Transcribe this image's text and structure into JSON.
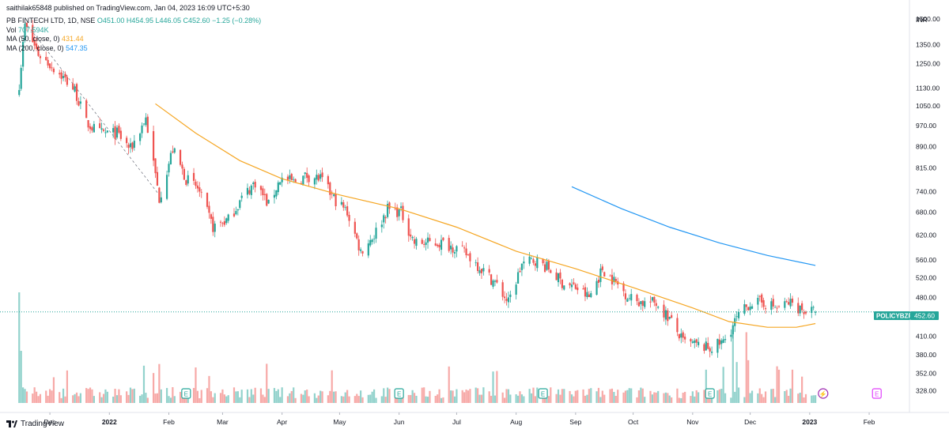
{
  "publisher": "saithilak65848 published on TradingView.com, Jan 04, 2023 16:09 UTC+5:30",
  "legend": {
    "symbol": "PB FINTECH LTD, 1D, NSE",
    "open": "O451.00",
    "high": "H454.95",
    "low": "L446.05",
    "close": "C452.60",
    "change": "−1.25 (−0.28%)",
    "vol_label": "Vol",
    "vol_value": "707.594K",
    "ma50_label": "MA (50, close, 0)",
    "ma50_value": "431.44",
    "ma200_label": "MA (200, close, 0)",
    "ma200_value": "547.35"
  },
  "currency": "INR",
  "price_tag": {
    "ticker": "POLICYBZR",
    "value": "452.60"
  },
  "footer": {
    "brand": "TradingView"
  },
  "colors": {
    "up": "#26a69a",
    "down": "#ef5350",
    "ma50": "#f5a623",
    "ma200": "#2196f3",
    "tag": "#26a69a"
  },
  "chart_data": {
    "type": "candlestick",
    "y_scale": "log",
    "ylim": [
      300,
      1620
    ],
    "y_ticks": [
      "1500.00",
      "1350.00",
      "1250.00",
      "1130.00",
      "1050.00",
      "970.00",
      "890.00",
      "815.00",
      "740.00",
      "680.00",
      "620.00",
      "560.00",
      "520.00",
      "480.00",
      "410.00",
      "380.00",
      "352.00",
      "328.00"
    ],
    "y_tick_values": [
      1500,
      1350,
      1250,
      1130,
      1050,
      970,
      890,
      815,
      740,
      680,
      620,
      560,
      520,
      480,
      410,
      380,
      352,
      328
    ],
    "x_ticks": [
      "Dec",
      "2022",
      "Feb",
      "Mar",
      "Apr",
      "May",
      "Jun",
      "Jul",
      "Aug",
      "Sep",
      "Oct",
      "Nov",
      "Dec",
      "2023",
      "Feb"
    ],
    "x_tick_dates": [
      "2021-12-01",
      "2022-01-01",
      "2022-02-01",
      "2022-03-01",
      "2022-04-01",
      "2022-05-01",
      "2022-06-01",
      "2022-07-01",
      "2022-08-01",
      "2022-09-01",
      "2022-10-01",
      "2022-11-01",
      "2022-12-01",
      "2023-01-01",
      "2023-02-01"
    ],
    "date_range": [
      "2021-11-05",
      "2023-02-22"
    ],
    "last_price": 452.6,
    "ohlc_anchor_points": [
      {
        "date": "2021-11-15",
        "close": 1150
      },
      {
        "date": "2021-11-18",
        "close": 1460
      },
      {
        "date": "2021-11-25",
        "close": 1300
      },
      {
        "date": "2021-12-06",
        "close": 1200
      },
      {
        "date": "2021-12-14",
        "close": 1120
      },
      {
        "date": "2021-12-20",
        "close": 980
      },
      {
        "date": "2021-12-27",
        "close": 940
      },
      {
        "date": "2022-01-05",
        "close": 940
      },
      {
        "date": "2022-01-12",
        "close": 880
      },
      {
        "date": "2022-01-20",
        "close": 1000
      },
      {
        "date": "2022-01-27",
        "close": 720
      },
      {
        "date": "2022-02-03",
        "close": 880
      },
      {
        "date": "2022-02-10",
        "close": 780
      },
      {
        "date": "2022-02-16",
        "close": 750
      },
      {
        "date": "2022-02-24",
        "close": 640
      },
      {
        "date": "2022-03-04",
        "close": 660
      },
      {
        "date": "2022-03-11",
        "close": 720
      },
      {
        "date": "2022-03-18",
        "close": 770
      },
      {
        "date": "2022-03-25",
        "close": 700
      },
      {
        "date": "2022-03-31",
        "close": 780
      },
      {
        "date": "2022-04-07",
        "close": 770
      },
      {
        "date": "2022-04-14",
        "close": 790
      },
      {
        "date": "2022-04-21",
        "close": 780
      },
      {
        "date": "2022-04-28",
        "close": 720
      },
      {
        "date": "2022-05-05",
        "close": 680
      },
      {
        "date": "2022-05-12",
        "close": 580
      },
      {
        "date": "2022-05-19",
        "close": 620
      },
      {
        "date": "2022-05-26",
        "close": 690
      },
      {
        "date": "2022-06-02",
        "close": 680
      },
      {
        "date": "2022-06-09",
        "close": 600
      },
      {
        "date": "2022-06-16",
        "close": 600
      },
      {
        "date": "2022-06-23",
        "close": 600
      },
      {
        "date": "2022-06-30",
        "close": 590
      },
      {
        "date": "2022-07-07",
        "close": 570
      },
      {
        "date": "2022-07-14",
        "close": 540
      },
      {
        "date": "2022-07-21",
        "close": 510
      },
      {
        "date": "2022-07-28",
        "close": 470
      },
      {
        "date": "2022-08-04",
        "close": 550
      },
      {
        "date": "2022-08-11",
        "close": 560
      },
      {
        "date": "2022-08-18",
        "close": 540
      },
      {
        "date": "2022-08-25",
        "close": 510
      },
      {
        "date": "2022-09-01",
        "close": 500
      },
      {
        "date": "2022-09-08",
        "close": 480
      },
      {
        "date": "2022-09-15",
        "close": 540
      },
      {
        "date": "2022-09-22",
        "close": 510
      },
      {
        "date": "2022-09-29",
        "close": 480
      },
      {
        "date": "2022-10-06",
        "close": 470
      },
      {
        "date": "2022-10-13",
        "close": 470
      },
      {
        "date": "2022-10-20",
        "close": 440
      },
      {
        "date": "2022-10-27",
        "close": 400
      },
      {
        "date": "2022-11-03",
        "close": 395
      },
      {
        "date": "2022-11-10",
        "close": 390
      },
      {
        "date": "2022-11-17",
        "close": 400
      },
      {
        "date": "2022-11-24",
        "close": 440
      },
      {
        "date": "2022-12-01",
        "close": 470
      },
      {
        "date": "2022-12-08",
        "close": 470
      },
      {
        "date": "2022-12-15",
        "close": 460
      },
      {
        "date": "2022-12-22",
        "close": 470
      },
      {
        "date": "2022-12-29",
        "close": 455
      },
      {
        "date": "2023-01-04",
        "close": 452.6
      }
    ],
    "ma50_points": [
      {
        "date": "2022-01-25",
        "value": 1060
      },
      {
        "date": "2022-02-15",
        "value": 940
      },
      {
        "date": "2022-03-10",
        "value": 840
      },
      {
        "date": "2022-04-01",
        "value": 780
      },
      {
        "date": "2022-05-01",
        "value": 730
      },
      {
        "date": "2022-06-01",
        "value": 690
      },
      {
        "date": "2022-07-01",
        "value": 640
      },
      {
        "date": "2022-08-01",
        "value": 580
      },
      {
        "date": "2022-09-01",
        "value": 540
      },
      {
        "date": "2022-10-01",
        "value": 500
      },
      {
        "date": "2022-11-01",
        "value": 460
      },
      {
        "date": "2022-11-20",
        "value": 435
      },
      {
        "date": "2022-12-10",
        "value": 425
      },
      {
        "date": "2022-12-25",
        "value": 425
      },
      {
        "date": "2023-01-04",
        "value": 431.44
      }
    ],
    "ma200_points": [
      {
        "date": "2022-08-30",
        "value": 755
      },
      {
        "date": "2022-09-25",
        "value": 690
      },
      {
        "date": "2022-10-20",
        "value": 640
      },
      {
        "date": "2022-11-15",
        "value": 600
      },
      {
        "date": "2022-12-10",
        "value": 570
      },
      {
        "date": "2023-01-04",
        "value": 547.35
      }
    ],
    "events": [
      {
        "date": "2022-02-10",
        "label": "E"
      },
      {
        "date": "2022-06-01",
        "label": "E"
      },
      {
        "date": "2022-08-15",
        "label": "E"
      },
      {
        "date": "2022-11-10",
        "label": "E"
      },
      {
        "date": "2023-01-08",
        "label": "⚡"
      },
      {
        "date": "2023-02-05",
        "label": "E"
      }
    ],
    "annotation": {
      "type": "trendline",
      "from": {
        "date": "2021-11-18",
        "value": 1480
      },
      "to": {
        "date": "2022-01-27",
        "value": 730
      }
    }
  }
}
